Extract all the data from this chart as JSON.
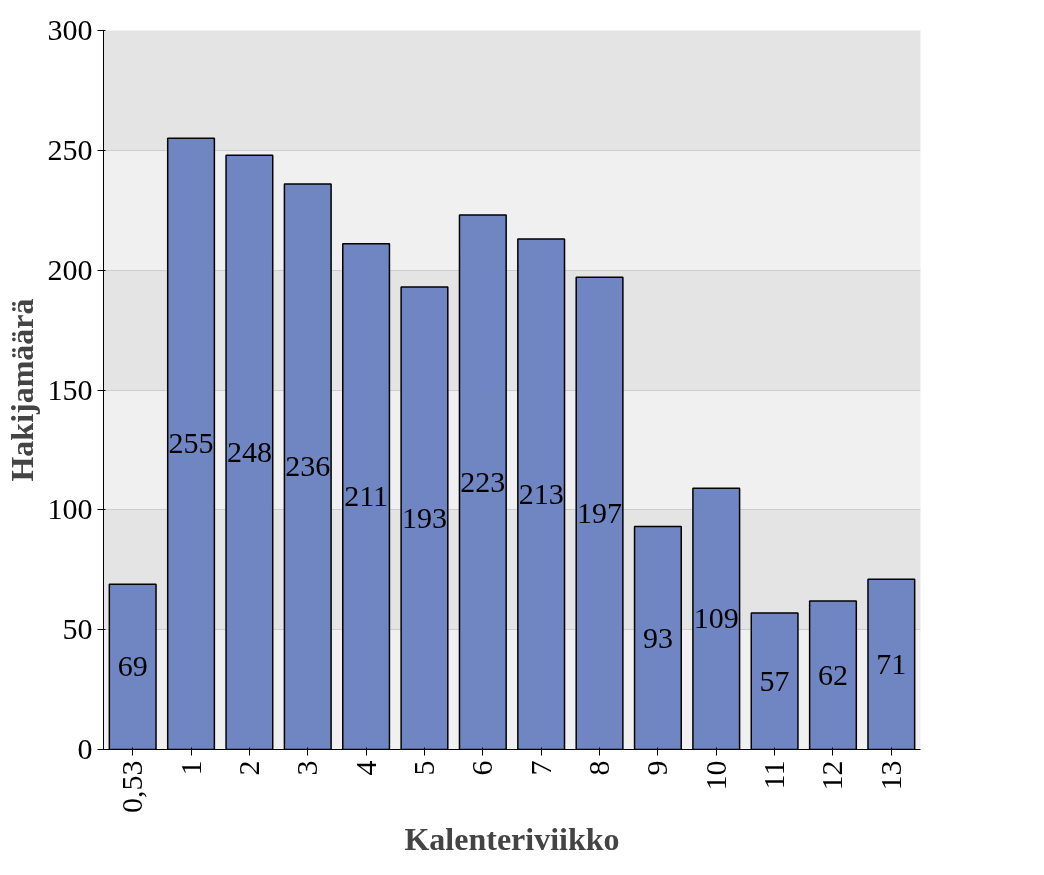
{
  "chart_data": {
    "type": "bar",
    "xlabel": "Kalenteriviikko",
    "ylabel": "Hakijamäärä",
    "categories": [
      "0,53",
      "1",
      "2",
      "3",
      "4",
      "5",
      "6",
      "7",
      "8",
      "9",
      "10",
      "11",
      "12",
      "13"
    ],
    "values": [
      69,
      255,
      248,
      236,
      211,
      193,
      223,
      213,
      197,
      93,
      109,
      57,
      62,
      71
    ],
    "color": "#6f86c2",
    "ylim": [
      0,
      300
    ],
    "yticks": [
      0,
      50,
      100,
      150,
      200,
      250,
      300
    ],
    "grid": "y",
    "data_labels": true
  }
}
